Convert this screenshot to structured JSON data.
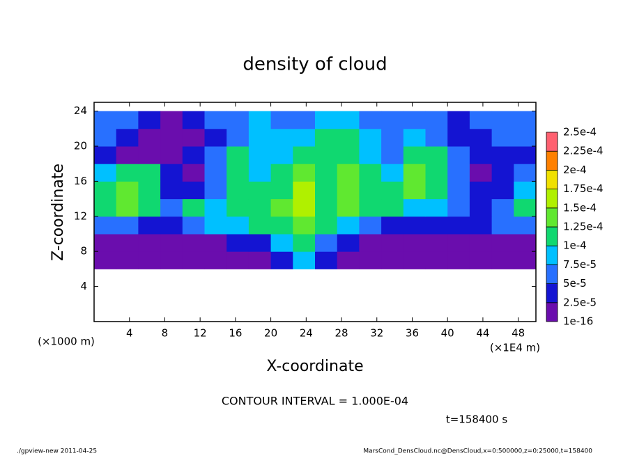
{
  "chart_data": {
    "type": "heatmap",
    "title": "density of cloud",
    "x_label": "X-coordinate",
    "y_label": "Z-coordinate",
    "x_unit": "(×1E4 m)",
    "y_unit": "(×1000 m)",
    "annotation": "CONTOUR INTERVAL = 1.000E-04",
    "time_label": "t=158400 s",
    "footer_left": "./gpview-new  2011-04-25",
    "footer_right": "MarsCond_DensCloud.nc@DensCloud,x=0:500000,z=0:25000,t=158400",
    "xlim": [
      0,
      50
    ],
    "ylim": [
      0,
      25
    ],
    "xticks": [
      4,
      8,
      12,
      16,
      20,
      24,
      28,
      32,
      36,
      40,
      44,
      48
    ],
    "yticks": [
      4,
      8,
      12,
      16,
      20,
      24
    ],
    "x": [
      1.25,
      3.75,
      6.25,
      8.75,
      11.25,
      13.75,
      16.25,
      18.75,
      21.25,
      23.75,
      26.25,
      28.75,
      31.25,
      33.75,
      36.25,
      38.75,
      41.25,
      43.75,
      46.25,
      48.75
    ],
    "y": [
      1,
      3,
      5,
      7,
      9,
      11,
      13,
      15,
      17,
      19,
      21,
      23
    ],
    "values": [
      [
        null,
        null,
        null,
        null,
        null,
        null,
        null,
        null,
        null,
        null,
        null,
        null,
        null,
        null,
        null,
        null,
        null,
        null,
        null,
        null
      ],
      [
        null,
        null,
        null,
        null,
        null,
        null,
        null,
        null,
        null,
        null,
        null,
        null,
        null,
        null,
        null,
        null,
        null,
        null,
        null,
        null
      ],
      [
        null,
        null,
        null,
        null,
        null,
        null,
        null,
        null,
        null,
        null,
        null,
        null,
        null,
        null,
        null,
        null,
        null,
        null,
        null,
        null
      ],
      [
        1e-05,
        1e-05,
        1e-05,
        1e-05,
        1e-05,
        1e-05,
        1e-05,
        1e-05,
        3e-05,
        8e-05,
        3e-05,
        1e-05,
        1e-05,
        1e-05,
        1e-05,
        1e-05,
        1e-05,
        1e-05,
        1e-05,
        1e-05
      ],
      [
        1.5e-05,
        1e-05,
        1e-05,
        1.5e-05,
        1e-05,
        2e-05,
        3e-05,
        4e-05,
        9e-05,
        0.00011,
        6e-05,
        3e-05,
        1.5e-05,
        1e-05,
        1e-05,
        1.5e-05,
        1e-05,
        1e-05,
        1e-05,
        1.5e-05
      ],
      [
        6e-05,
        5e-05,
        4e-05,
        3e-05,
        6e-05,
        9e-05,
        8e-05,
        0.000105,
        0.00011,
        0.00013,
        0.00011,
        8e-05,
        6e-05,
        4e-05,
        3e-05,
        3e-05,
        4e-05,
        3e-05,
        5e-05,
        6e-05
      ],
      [
        0.00012,
        0.00013,
        0.00011,
        6e-05,
        0.00012,
        8e-05,
        0.00011,
        0.00012,
        0.00013,
        0.00016,
        0.00012,
        0.00013,
        0.00011,
        0.000115,
        9e-05,
        8e-05,
        6e-05,
        4e-05,
        7e-05,
        0.00011
      ],
      [
        0.00012,
        0.00013,
        0.00011,
        4e-05,
        3e-05,
        6e-05,
        0.00011,
        0.00012,
        0.000115,
        0.00015,
        0.00012,
        0.00013,
        0.00011,
        0.00012,
        0.00013,
        0.00012,
        6e-05,
        3e-05,
        4e-05,
        8e-05
      ],
      [
        9e-05,
        0.00012,
        0.00011,
        3e-05,
        2e-05,
        5e-05,
        0.00011,
        9e-05,
        0.00012,
        0.00013,
        0.00012,
        0.00013,
        0.00011,
        8e-05,
        0.00013,
        0.00012,
        7e-05,
        2e-05,
        3e-05,
        6e-05
      ],
      [
        4e-05,
        2e-05,
        1e-05,
        2e-05,
        3e-05,
        6e-05,
        0.0001,
        8e-05,
        9e-05,
        0.00012,
        0.00011,
        0.00012,
        9e-05,
        7e-05,
        0.00011,
        0.000105,
        5e-05,
        4e-05,
        3e-05,
        4e-05
      ],
      [
        5e-05,
        4e-05,
        2e-05,
        1e-05,
        2e-05,
        4e-05,
        7e-05,
        8e-05,
        9e-05,
        8e-05,
        0.0001,
        0.00011,
        8e-05,
        7e-05,
        8e-05,
        6e-05,
        4e-05,
        3e-05,
        5e-05,
        6e-05
      ],
      [
        6e-05,
        5e-05,
        3e-05,
        2e-05,
        3e-05,
        5e-05,
        6e-05,
        8e-05,
        7e-05,
        7e-05,
        8e-05,
        8e-05,
        7e-05,
        6e-05,
        6e-05,
        5e-05,
        4e-05,
        5e-05,
        6e-05,
        6e-05
      ]
    ],
    "colorbar": {
      "levels": [
        {
          "value": 1e-16,
          "label": "1e-16"
        },
        {
          "value": 2.5e-05,
          "label": "2.5e-5"
        },
        {
          "value": 5e-05,
          "label": "5e-5"
        },
        {
          "value": 7.5e-05,
          "label": "7.5e-5"
        },
        {
          "value": 0.0001,
          "label": "1e-4"
        },
        {
          "value": 0.000125,
          "label": "1.25e-4"
        },
        {
          "value": 0.00015,
          "label": "1.5e-4"
        },
        {
          "value": 0.000175,
          "label": "1.75e-4"
        },
        {
          "value": 0.0002,
          "label": "2e-4"
        },
        {
          "value": 0.000225,
          "label": "2.25e-4"
        },
        {
          "value": 0.00025,
          "label": "2.5e-4"
        }
      ],
      "colors": [
        "#6a0dad",
        "#1414d2",
        "#2870ff",
        "#00c0ff",
        "#10d870",
        "#60e830",
        "#b0f000",
        "#f0e000",
        "#ff8000",
        "#ff6070"
      ]
    }
  }
}
